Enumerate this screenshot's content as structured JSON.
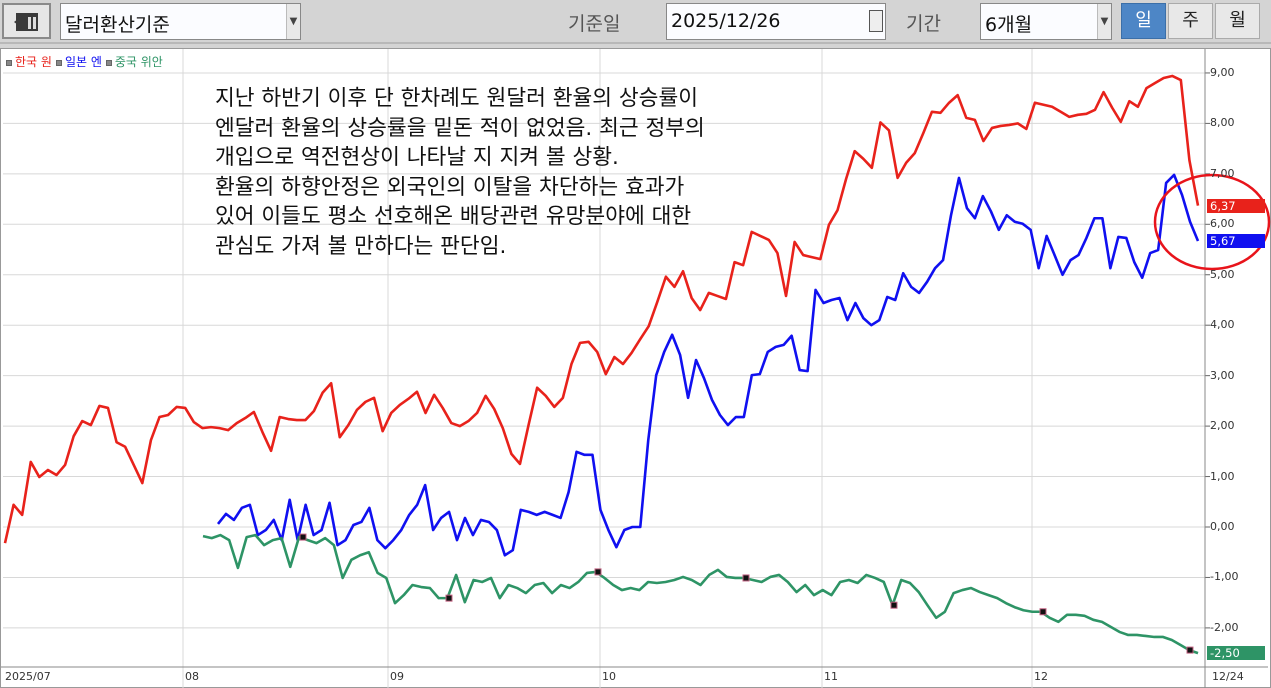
{
  "toolbar": {
    "icon": "panel-toggle-icon",
    "basis_select": "달러환산기준",
    "date_label": "기준일",
    "date_value": "2025/12/26",
    "period_label": "기간",
    "period_select": "6개월",
    "period_buttons": [
      {
        "label": "일",
        "active": true
      },
      {
        "label": "주",
        "active": false
      },
      {
        "label": "월",
        "active": false
      }
    ]
  },
  "legend": [
    {
      "name": "한국 원",
      "color": "#e8221b"
    },
    {
      "name": "일본 엔",
      "color": "#1010f0"
    },
    {
      "name": "중국 위안",
      "color": "#2e9466"
    }
  ],
  "annotation": "지난 하반기 이후 단 한차례도 원달러 환율의 상승률이\n엔달러 환율의 상승률을 밑돈 적이 없었음. 최근 정부의\n개입으로 역전현상이 나타날 지 지켜 볼 상황.\n환율의 하향안정은 외국인의 이탈을 차단하는 효과가\n있어 이들도 평소 선호해온 배당관련 유망분야에 대한\n관심도 가져 볼 만하다는 판단임.",
  "chart_data": {
    "type": "line",
    "y_ticks": [
      "9.00",
      "8.00",
      "7.00",
      "6.00",
      "5.00",
      "4.00",
      "3.00",
      "2.00",
      "1.00",
      "0.00",
      "-1.00",
      "-2.00"
    ],
    "ylim": [
      -2.9,
      9.1
    ],
    "x_ticks": [
      "2025/07",
      "08",
      "09",
      "10",
      "11",
      "12",
      "12/24"
    ],
    "grid": true,
    "legend_position": "top-left",
    "series": [
      {
        "name": "한국 원",
        "color": "#e8221b",
        "last_label": "6.37",
        "values": [
          -0.32,
          0.44,
          0.24,
          1.29,
          0.99,
          1.13,
          1.03,
          1.23,
          1.8,
          2.1,
          2.02,
          2.4,
          2.36,
          1.68,
          1.59,
          1.23,
          0.87,
          1.72,
          2.18,
          2.22,
          2.38,
          2.36,
          2.08,
          1.96,
          1.98,
          1.96,
          1.92,
          2.06,
          2.16,
          2.28,
          1.88,
          1.51,
          2.18,
          2.14,
          2.12,
          2.12,
          2.3,
          2.66,
          2.85,
          1.78,
          2.02,
          2.32,
          2.48,
          2.56,
          1.9,
          2.26,
          2.42,
          2.54,
          2.68,
          2.26,
          2.62,
          2.36,
          2.06,
          2.0,
          2.1,
          2.26,
          2.6,
          2.34,
          1.96,
          1.45,
          1.25,
          2.02,
          2.76,
          2.6,
          2.38,
          2.56,
          3.23,
          3.65,
          3.67,
          3.47,
          3.03,
          3.37,
          3.23,
          3.45,
          3.72,
          3.98,
          4.46,
          4.96,
          4.76,
          5.07,
          4.54,
          4.3,
          4.64,
          4.58,
          4.52,
          5.25,
          5.19,
          5.85,
          5.77,
          5.69,
          5.43,
          4.58,
          5.65,
          5.39,
          5.35,
          5.31,
          5.99,
          6.28,
          6.9,
          7.45,
          7.3,
          7.12,
          8.02,
          7.86,
          6.92,
          7.22,
          7.41,
          7.81,
          8.23,
          8.21,
          8.41,
          8.56,
          8.11,
          8.07,
          7.65,
          7.91,
          7.95,
          7.97,
          8.0,
          7.89,
          8.41,
          8.37,
          8.33,
          8.23,
          8.13,
          8.17,
          8.19,
          8.27,
          8.62,
          8.31,
          8.03,
          8.44,
          8.33,
          8.7,
          8.8,
          8.9,
          8.94,
          8.86,
          7.27,
          6.37
        ]
      },
      {
        "name": "일본 엔",
        "color": "#1010f0",
        "last_label": "5.67",
        "values": [
          0.06,
          0.26,
          0.14,
          0.38,
          0.44,
          -0.16,
          -0.06,
          0.14,
          -0.26,
          0.54,
          -0.26,
          0.44,
          -0.16,
          -0.06,
          0.48,
          -0.36,
          -0.26,
          0.04,
          0.1,
          0.38,
          -0.26,
          -0.42,
          -0.26,
          -0.06,
          0.24,
          0.44,
          0.83,
          -0.06,
          0.18,
          0.3,
          -0.26,
          0.18,
          -0.16,
          0.14,
          0.1,
          -0.06,
          -0.56,
          -0.46,
          0.34,
          0.3,
          0.24,
          0.3,
          0.24,
          0.18,
          0.69,
          1.49,
          1.43,
          1.43,
          0.34,
          -0.06,
          -0.4,
          -0.06,
          0.0,
          0.0,
          1.72,
          3.01,
          3.47,
          3.81,
          3.41,
          2.56,
          3.31,
          2.95,
          2.52,
          2.22,
          2.02,
          2.18,
          2.18,
          3.01,
          3.03,
          3.47,
          3.57,
          3.61,
          3.79,
          3.11,
          3.09,
          4.7,
          4.44,
          4.5,
          4.54,
          4.1,
          4.44,
          4.14,
          4.0,
          4.1,
          4.56,
          4.5,
          5.03,
          4.76,
          4.64,
          4.86,
          5.13,
          5.29,
          6.18,
          6.92,
          6.32,
          6.12,
          6.56,
          6.26,
          5.89,
          6.18,
          6.05,
          6.01,
          5.89,
          5.13,
          5.77,
          5.39,
          5.0,
          5.29,
          5.39,
          5.73,
          6.12,
          6.12,
          5.13,
          5.75,
          5.73,
          5.25,
          4.94,
          5.43,
          5.49,
          6.82,
          6.98,
          6.58,
          6.05,
          5.67
        ]
      },
      {
        "name": "중국 위안",
        "color": "#2e9466",
        "last_label": "-2.50",
        "values": [
          -0.18,
          -0.22,
          -0.16,
          -0.26,
          -0.81,
          -0.2,
          -0.16,
          -0.36,
          -0.26,
          -0.22,
          -0.79,
          -0.2,
          -0.26,
          -0.32,
          -0.22,
          -0.36,
          -1.01,
          -0.65,
          -0.56,
          -0.5,
          -0.91,
          -1.01,
          -1.51,
          -1.35,
          -1.15,
          -1.19,
          -1.21,
          -1.41,
          -1.41,
          -0.95,
          -1.49,
          -1.05,
          -1.09,
          -1.01,
          -1.41,
          -1.15,
          -1.21,
          -1.31,
          -1.15,
          -1.11,
          -1.31,
          -1.15,
          -1.21,
          -1.09,
          -0.91,
          -0.89,
          -1.01,
          -1.15,
          -1.25,
          -1.21,
          -1.25,
          -1.09,
          -1.11,
          -1.09,
          -1.05,
          -0.99,
          -1.05,
          -1.15,
          -0.95,
          -0.85,
          -0.99,
          -1.01,
          -1.01,
          -1.05,
          -1.09,
          -0.99,
          -0.95,
          -1.09,
          -1.29,
          -1.15,
          -1.35,
          -1.25,
          -1.35,
          -1.09,
          -1.05,
          -1.11,
          -0.95,
          -1.01,
          -1.09,
          -1.55,
          -1.05,
          -1.11,
          -1.29,
          -1.55,
          -1.8,
          -1.68,
          -1.31,
          -1.25,
          -1.21,
          -1.29,
          -1.35,
          -1.41,
          -1.51,
          -1.59,
          -1.65,
          -1.68,
          -1.68,
          -1.8,
          -1.88,
          -1.74,
          -1.74,
          -1.76,
          -1.84,
          -1.88,
          -1.98,
          -2.08,
          -2.14,
          -2.14,
          -2.16,
          -2.18,
          -2.18,
          -2.24,
          -2.34,
          -2.44,
          -2.5
        ]
      }
    ]
  }
}
